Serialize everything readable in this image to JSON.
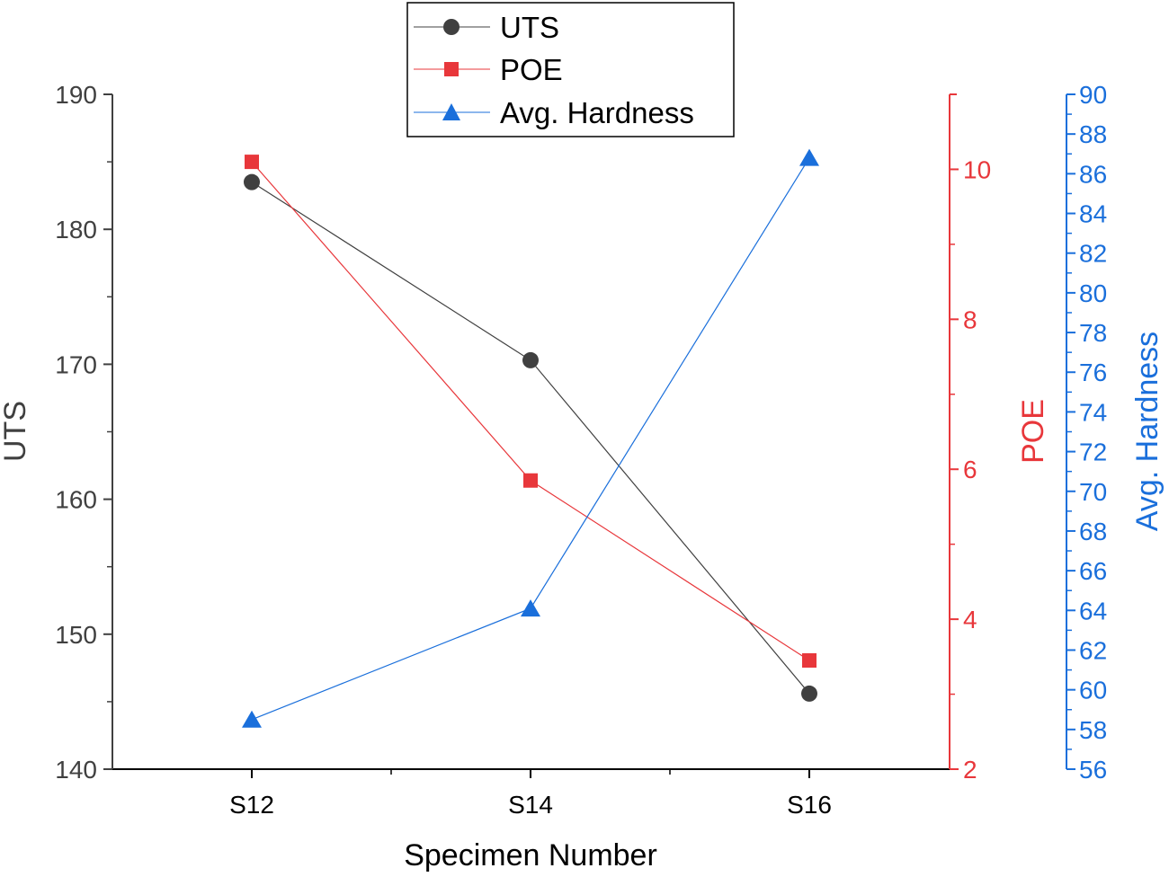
{
  "chart_data": {
    "type": "line",
    "title": "",
    "xlabel": "Specimen Number",
    "categories": [
      "S12",
      "S14",
      "S16"
    ],
    "axes": {
      "uts": {
        "label": "UTS",
        "ylim": [
          140,
          190
        ],
        "ticks": [
          140,
          150,
          160,
          170,
          180,
          190
        ],
        "color": "#404040"
      },
      "poe": {
        "label": "POE",
        "ylim": [
          2,
          11
        ],
        "ticks": [
          2,
          4,
          6,
          8,
          10
        ],
        "color": "#e8373b"
      },
      "hardness": {
        "label": "Avg. Hardness",
        "ylim": [
          56,
          90
        ],
        "ticks": [
          56,
          58,
          60,
          62,
          64,
          66,
          68,
          70,
          72,
          74,
          76,
          78,
          80,
          82,
          84,
          86,
          88,
          90
        ],
        "color": "#1a6fdb"
      }
    },
    "series": [
      {
        "name": "UTS",
        "axis": "uts",
        "marker": "circle",
        "color": "#404040",
        "values": [
          183.5,
          170.3,
          145.6
        ]
      },
      {
        "name": "POE",
        "axis": "poe",
        "marker": "square",
        "color": "#e8373b",
        "values": [
          10.1,
          5.85,
          3.45
        ]
      },
      {
        "name": "Avg. Hardness",
        "axis": "hardness",
        "marker": "triangle",
        "color": "#1a6fdb",
        "values": [
          58.5,
          64.1,
          86.8
        ]
      }
    ],
    "legend": {
      "position": "top-center",
      "entries": [
        "UTS",
        "POE",
        "Avg. Hardness"
      ]
    },
    "grid": false
  }
}
